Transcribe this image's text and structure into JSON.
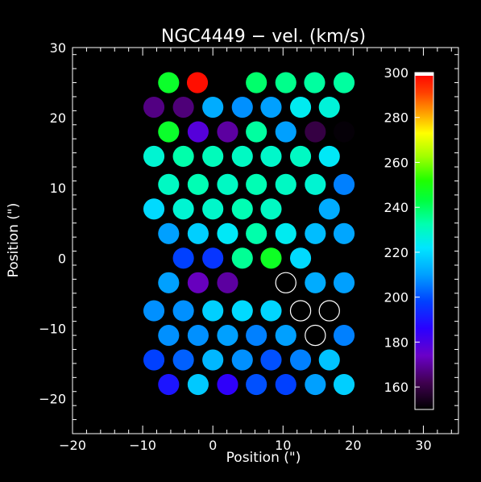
{
  "chart_data": {
    "type": "scatter",
    "title": "NGC4449 − vel. (km/s)",
    "xlabel": "Position (\")",
    "ylabel": "Position (\")",
    "xlim": [
      -20,
      35
    ],
    "ylim": [
      -25,
      30
    ],
    "xticks": [
      -20,
      -10,
      0,
      10,
      20,
      30
    ],
    "yticks": [
      -20,
      -10,
      0,
      10,
      20,
      30
    ],
    "xtick_labels": [
      "−20",
      "−10",
      "0",
      "10",
      "20",
      "30"
    ],
    "ytick_labels": [
      "−20",
      "−10",
      "0",
      "10",
      "20",
      "30"
    ],
    "fiber_radius": 1.5,
    "colorbar": {
      "range": [
        150,
        300
      ],
      "ticks": [
        160,
        180,
        200,
        220,
        240,
        260,
        280,
        300
      ],
      "tick_labels": [
        "160",
        "180",
        "200",
        "220",
        "240",
        "260",
        "280",
        "300"
      ]
    },
    "points": [
      {
        "x": -6.3,
        "y": 25.0,
        "v": 246
      },
      {
        "x": -2.2,
        "y": 25.0,
        "v": 298
      },
      {
        "x": 6.2,
        "y": 25.0,
        "v": 239
      },
      {
        "x": 10.4,
        "y": 25.0,
        "v": 236
      },
      {
        "x": 14.5,
        "y": 25.0,
        "v": 234
      },
      {
        "x": 18.7,
        "y": 25.0,
        "v": 234
      },
      {
        "x": -8.4,
        "y": 21.5,
        "v": 167
      },
      {
        "x": -4.2,
        "y": 21.5,
        "v": 166
      },
      {
        "x": 0.0,
        "y": 21.5,
        "v": 212
      },
      {
        "x": 4.2,
        "y": 21.5,
        "v": 208
      },
      {
        "x": 8.3,
        "y": 21.5,
        "v": 210
      },
      {
        "x": 12.5,
        "y": 21.5,
        "v": 224
      },
      {
        "x": 16.6,
        "y": 21.5,
        "v": 227
      },
      {
        "x": -6.3,
        "y": 18.0,
        "v": 246
      },
      {
        "x": -2.1,
        "y": 18.0,
        "v": 178
      },
      {
        "x": 2.1,
        "y": 18.0,
        "v": 170
      },
      {
        "x": 6.2,
        "y": 18.0,
        "v": 234
      },
      {
        "x": 10.4,
        "y": 18.0,
        "v": 210
      },
      {
        "x": 14.6,
        "y": 18.0,
        "v": 160
      },
      {
        "x": 18.7,
        "y": 18.0,
        "v": 151
      },
      {
        "x": -8.4,
        "y": 14.5,
        "v": 228
      },
      {
        "x": -4.2,
        "y": 14.5,
        "v": 233
      },
      {
        "x": 0.0,
        "y": 14.5,
        "v": 231
      },
      {
        "x": 4.2,
        "y": 14.5,
        "v": 230
      },
      {
        "x": 8.3,
        "y": 14.5,
        "v": 229
      },
      {
        "x": 12.5,
        "y": 14.5,
        "v": 230
      },
      {
        "x": 16.6,
        "y": 14.5,
        "v": 223
      },
      {
        "x": -6.3,
        "y": 10.5,
        "v": 230
      },
      {
        "x": -2.1,
        "y": 10.5,
        "v": 232
      },
      {
        "x": 2.1,
        "y": 10.5,
        "v": 230
      },
      {
        "x": 6.2,
        "y": 10.5,
        "v": 232
      },
      {
        "x": 10.4,
        "y": 10.5,
        "v": 230
      },
      {
        "x": 14.6,
        "y": 10.5,
        "v": 228
      },
      {
        "x": 18.7,
        "y": 10.5,
        "v": 206
      },
      {
        "x": -8.4,
        "y": 7.0,
        "v": 220
      },
      {
        "x": -4.2,
        "y": 7.0,
        "v": 228
      },
      {
        "x": 0.0,
        "y": 7.0,
        "v": 229
      },
      {
        "x": 4.2,
        "y": 7.0,
        "v": 232
      },
      {
        "x": 8.3,
        "y": 7.0,
        "v": 230
      },
      {
        "x": 16.6,
        "y": 7.0,
        "v": 212
      },
      {
        "x": -6.3,
        "y": 3.5,
        "v": 210
      },
      {
        "x": -2.1,
        "y": 3.5,
        "v": 218
      },
      {
        "x": 2.1,
        "y": 3.5,
        "v": 223
      },
      {
        "x": 6.2,
        "y": 3.5,
        "v": 233
      },
      {
        "x": 10.4,
        "y": 3.5,
        "v": 224
      },
      {
        "x": 14.6,
        "y": 3.5,
        "v": 215
      },
      {
        "x": 18.7,
        "y": 3.5,
        "v": 211
      },
      {
        "x": -4.2,
        "y": 0.0,
        "v": 198
      },
      {
        "x": 0.0,
        "y": 0.0,
        "v": 196
      },
      {
        "x": 4.2,
        "y": 0.0,
        "v": 235
      },
      {
        "x": 8.3,
        "y": 0.0,
        "v": 247
      },
      {
        "x": 12.5,
        "y": 0.0,
        "v": 220
      },
      {
        "x": -6.3,
        "y": -3.5,
        "v": 210
      },
      {
        "x": -2.1,
        "y": -3.5,
        "v": 173
      },
      {
        "x": 2.1,
        "y": -3.5,
        "v": 170
      },
      {
        "x": 10.4,
        "y": -3.5,
        "v": null
      },
      {
        "x": 14.6,
        "y": -3.5,
        "v": 212
      },
      {
        "x": 18.7,
        "y": -3.5,
        "v": 210
      },
      {
        "x": -8.4,
        "y": -7.5,
        "v": 208
      },
      {
        "x": -4.2,
        "y": -7.5,
        "v": 208
      },
      {
        "x": 0.0,
        "y": -7.5,
        "v": 218
      },
      {
        "x": 4.2,
        "y": -7.5,
        "v": 220
      },
      {
        "x": 8.3,
        "y": -7.5,
        "v": 219
      },
      {
        "x": 12.5,
        "y": -7.5,
        "v": null
      },
      {
        "x": 16.6,
        "y": -7.5,
        "v": null
      },
      {
        "x": -6.3,
        "y": -11.0,
        "v": 208
      },
      {
        "x": -2.1,
        "y": -11.0,
        "v": 208
      },
      {
        "x": 2.1,
        "y": -11.0,
        "v": 210
      },
      {
        "x": 6.2,
        "y": -11.0,
        "v": 206
      },
      {
        "x": 10.4,
        "y": -11.0,
        "v": 210
      },
      {
        "x": 14.6,
        "y": -11.0,
        "v": null
      },
      {
        "x": 18.7,
        "y": -11.0,
        "v": 206
      },
      {
        "x": -8.4,
        "y": -14.5,
        "v": 198
      },
      {
        "x": -4.2,
        "y": -14.5,
        "v": 202
      },
      {
        "x": 0.0,
        "y": -14.5,
        "v": 214
      },
      {
        "x": 4.2,
        "y": -14.5,
        "v": 208
      },
      {
        "x": 8.3,
        "y": -14.5,
        "v": 200
      },
      {
        "x": 12.5,
        "y": -14.5,
        "v": 206
      },
      {
        "x": 16.6,
        "y": -14.5,
        "v": 216
      },
      {
        "x": -6.3,
        "y": -18.0,
        "v": 190
      },
      {
        "x": -2.1,
        "y": -18.0,
        "v": 217
      },
      {
        "x": 2.1,
        "y": -18.0,
        "v": 185
      },
      {
        "x": 6.2,
        "y": -18.0,
        "v": 200
      },
      {
        "x": 10.4,
        "y": -18.0,
        "v": 198
      },
      {
        "x": 14.6,
        "y": -18.0,
        "v": 210
      },
      {
        "x": 18.7,
        "y": -18.0,
        "v": 218
      }
    ]
  }
}
